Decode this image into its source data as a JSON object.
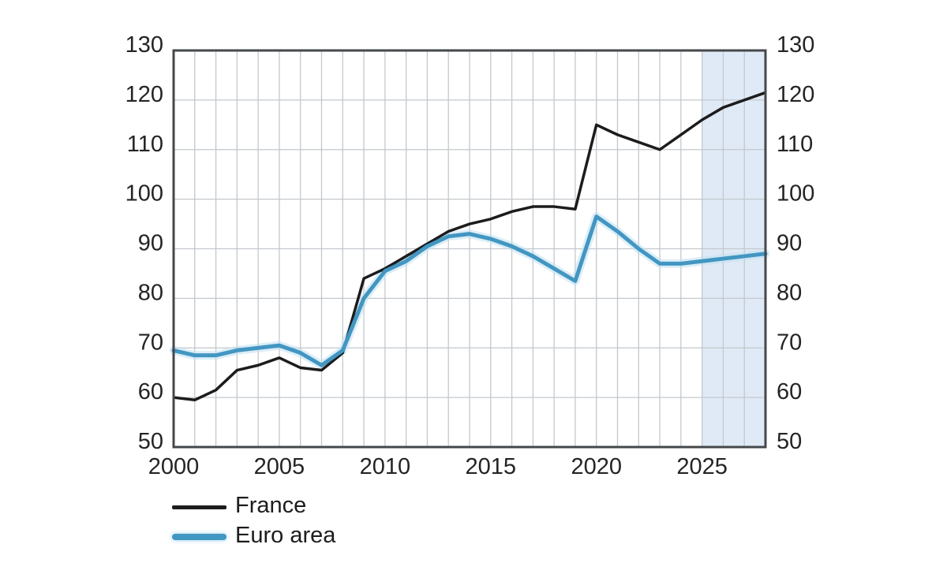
{
  "chart_data": {
    "type": "line",
    "title": "",
    "xlabel": "",
    "ylabel": "",
    "x": [
      2000,
      2001,
      2002,
      2003,
      2004,
      2005,
      2006,
      2007,
      2008,
      2009,
      2010,
      2011,
      2012,
      2013,
      2014,
      2015,
      2016,
      2017,
      2018,
      2019,
      2020,
      2021,
      2022,
      2023,
      2024,
      2025,
      2026,
      2027,
      2028
    ],
    "series": [
      {
        "name": "France",
        "color": "#1c1c1c",
        "line_width": 3.5,
        "values": [
          60,
          59.5,
          61.5,
          65.5,
          66.5,
          68,
          66,
          65.5,
          69,
          84,
          86,
          88.5,
          91,
          93.5,
          95,
          96,
          97.5,
          98.5,
          98.5,
          98,
          115,
          113,
          111.5,
          110,
          113,
          116,
          118.5,
          120,
          121.5
        ]
      },
      {
        "name": "Euro area",
        "color": "#4296c2",
        "line_width": 5,
        "halo_color": "#bfe0f0",
        "values": [
          69.5,
          68.5,
          68.5,
          69.5,
          70,
          70.5,
          69,
          66.5,
          69.5,
          80,
          85.5,
          87.5,
          90.5,
          92.5,
          93,
          92,
          90.5,
          88.5,
          86,
          83.5,
          96.5,
          93.5,
          90,
          87,
          87,
          87.5,
          88,
          88.5,
          89
        ]
      }
    ],
    "xlim": [
      2000,
      2028
    ],
    "ylim": [
      50,
      130
    ],
    "x_ticks": [
      2000,
      2005,
      2010,
      2015,
      2020,
      2025
    ],
    "y_ticks": [
      50,
      60,
      70,
      80,
      90,
      100,
      110,
      120,
      130
    ],
    "y_axis_sides": "both",
    "grid": "vertical every year, horizontal every 10",
    "forecast_band": {
      "from": 2025,
      "to": 2028,
      "color": "#e0eaf6"
    },
    "legend_position": "bottom-left"
  },
  "legend": {
    "items": [
      {
        "label": "France"
      },
      {
        "label": "Euro area"
      }
    ]
  },
  "colors": {
    "background": "#ffffff",
    "plot_background": "#ffffff",
    "gridline": "#c3c8cd",
    "frame": "#45484b",
    "tick_label": "#242424",
    "forecast_band": "#e0eaf6"
  }
}
